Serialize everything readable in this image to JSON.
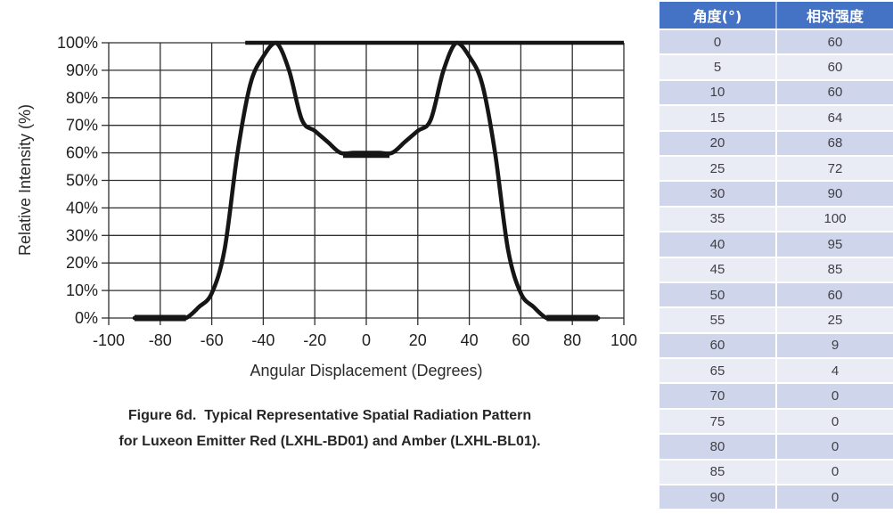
{
  "figure": {
    "caption_line1": "Figure 6d.  Typical Representative Spatial Radiation Pattern",
    "caption_line2": "for Luxeon Emitter Red (LXHL-BD01) and Amber (LXHL-BL01)."
  },
  "chart_data": {
    "type": "line",
    "title": "Figure 6d. Typical Representative Spatial Radiation Pattern for Luxeon Emitter Red (LXHL-BD01) and Amber (LXHL-BL01).",
    "xlabel": "Angular Displacement (Degrees)",
    "ylabel": "Relative Intensity (%)",
    "xlim": [
      -100,
      100
    ],
    "ylim": [
      0,
      100
    ],
    "x_ticks": [
      -100,
      -80,
      -60,
      -40,
      -20,
      0,
      20,
      40,
      60,
      80,
      100
    ],
    "y_ticks": [
      0,
      10,
      20,
      30,
      40,
      50,
      60,
      70,
      80,
      90,
      100
    ],
    "y_tick_suffix": "%",
    "grid": true,
    "line_color": "#161616",
    "series": [
      {
        "name": "Relative intensity vs angular displacement",
        "x": [
          -90,
          -85,
          -80,
          -75,
          -70,
          -65,
          -60,
          -55,
          -50,
          -45,
          -40,
          -35,
          -30,
          -25,
          -20,
          -15,
          -10,
          -5,
          0,
          5,
          10,
          15,
          20,
          25,
          30,
          35,
          40,
          45,
          50,
          55,
          60,
          65,
          70,
          75,
          80,
          85,
          90
        ],
        "y": [
          0,
          0,
          0,
          0,
          0,
          4,
          9,
          25,
          60,
          85,
          95,
          100,
          90,
          72,
          68,
          64,
          60,
          60,
          60,
          60,
          60,
          64,
          68,
          72,
          90,
          100,
          95,
          85,
          60,
          25,
          9,
          4,
          0,
          0,
          0,
          0,
          0
        ]
      }
    ]
  },
  "table": {
    "headers": [
      "角度(°)",
      "相对强度"
    ],
    "rows": [
      [
        0,
        60
      ],
      [
        5,
        60
      ],
      [
        10,
        60
      ],
      [
        15,
        64
      ],
      [
        20,
        68
      ],
      [
        25,
        72
      ],
      [
        30,
        90
      ],
      [
        35,
        100
      ],
      [
        40,
        95
      ],
      [
        45,
        85
      ],
      [
        50,
        60
      ],
      [
        55,
        25
      ],
      [
        60,
        9
      ],
      [
        65,
        4
      ],
      [
        70,
        0
      ],
      [
        75,
        0
      ],
      [
        80,
        0
      ],
      [
        85,
        0
      ],
      [
        90,
        0
      ]
    ],
    "colors": {
      "header_bg": "#4472C4",
      "header_text": "#FFFFFF",
      "row_odd_bg": "#CFD5EA",
      "row_even_bg": "#E9EBF5",
      "cell_text": "#3F3F46"
    }
  }
}
